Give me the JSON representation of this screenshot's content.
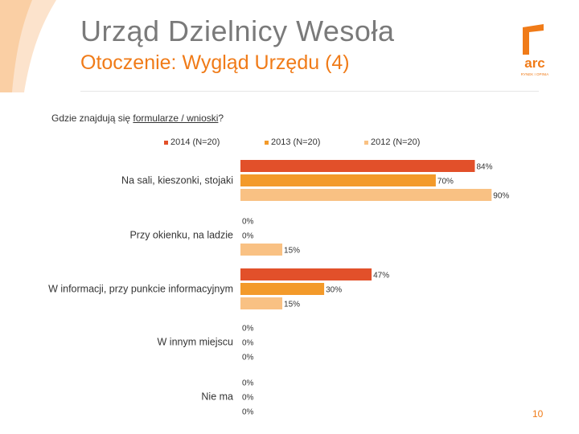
{
  "header": {
    "title": "Urząd Dzielnicy Wesoła",
    "subtitle": "Otoczenie: Wygląd Urzędu (4)"
  },
  "logo": {
    "name": "arc",
    "tagline": "RYNEK I OPINIA"
  },
  "question": {
    "prefix": "Gdzie znajdują się ",
    "underlined": "formularze / wnioski",
    "suffix": "?"
  },
  "page_number": "10",
  "colors": {
    "accent": "#f07b18",
    "s2014": "#e2502a",
    "s2013": "#f39a2a",
    "s2012": "#f9c183"
  },
  "chart_data": {
    "type": "bar",
    "orientation": "horizontal",
    "categories": [
      "Na sali, kieszonki, stojaki",
      "Przy okienku, na ladzie",
      "W informacji, przy punkcie informacyjnym",
      "W innym miejscu",
      "Nie ma"
    ],
    "series": [
      {
        "name": "2014 (N=20)",
        "values": [
          84,
          0,
          47,
          0,
          0
        ],
        "color": "#e2502a"
      },
      {
        "name": "2013 (N=20)",
        "values": [
          70,
          0,
          30,
          0,
          0
        ],
        "color": "#f39a2a"
      },
      {
        "name": "2012 (N=20)",
        "values": [
          90,
          15,
          15,
          0,
          0
        ],
        "color": "#f9c183"
      }
    ],
    "value_suffix": "%",
    "xlim": [
      0,
      100
    ],
    "legend_position": "top",
    "grid": false
  }
}
